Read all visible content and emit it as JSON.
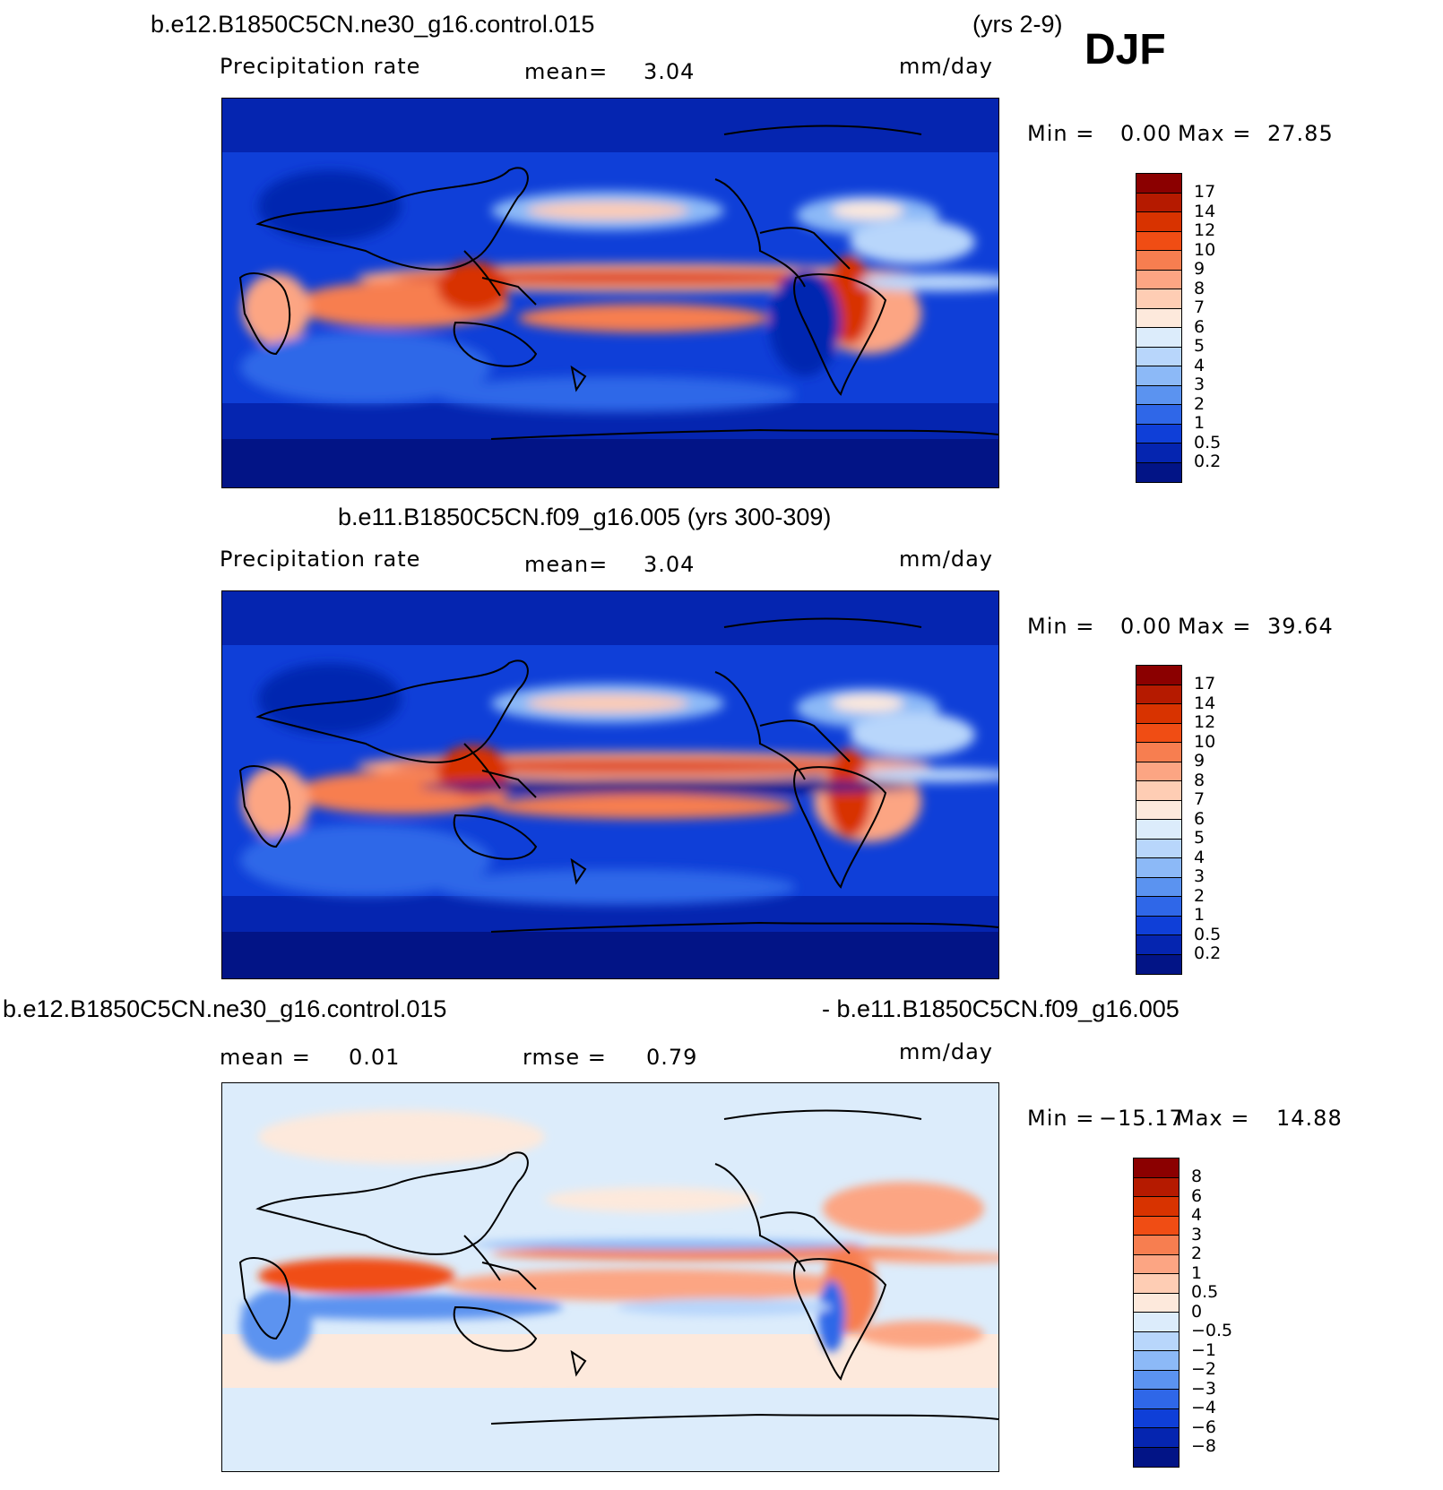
{
  "header": {
    "case1": "b.e12.B1850C5CN.ne30_g16.control.015",
    "years1": "(yrs 2-9)",
    "season": "DJF"
  },
  "panel1": {
    "variable": "Precipitation rate",
    "mean_label": "mean=",
    "mean_value": "3.04",
    "units": "mm/day",
    "min_label": "Min =",
    "min_value": "0.00",
    "max_label": "Max =",
    "max_value": "27.85"
  },
  "panel2": {
    "title": "b.e11.B1850C5CN.f09_g16.005 (yrs 300-309)",
    "variable": "Precipitation rate",
    "mean_label": "mean=",
    "mean_value": "3.04",
    "units": "mm/day",
    "min_label": "Min =",
    "min_value": "0.00",
    "max_label": "Max =",
    "max_value": "39.64"
  },
  "panel3": {
    "title_left": "b.e12.B1850C5CN.ne30_g16.control.015",
    "title_right": "- b.e11.B1850C5CN.f09_g16.005",
    "mean_label": "mean =",
    "mean_value": "0.01",
    "rmse_label": "rmse =",
    "rmse_value": "0.79",
    "units": "mm/day",
    "min_label": "Min =",
    "min_value": "−15.17",
    "max_label": "Max =",
    "max_value": "14.88"
  },
  "colorbar_precip": {
    "labels": [
      "17",
      "14",
      "12",
      "10",
      "9",
      "8",
      "7",
      "6",
      "5",
      "4",
      "3",
      "2",
      "1",
      "0.5",
      "0.2"
    ],
    "colors": [
      "#8b0000",
      "#b51a00",
      "#d83300",
      "#f04d14",
      "#f77e50",
      "#fca583",
      "#fecdb4",
      "#fde9dc",
      "#dcecfb",
      "#b8d6fb",
      "#8cb9f7",
      "#5b93f0",
      "#2f67e8",
      "#0f3fd8",
      "#0525b0",
      "#021486"
    ]
  },
  "colorbar_diff": {
    "labels": [
      "8",
      "6",
      "4",
      "3",
      "2",
      "1",
      "0.5",
      "0",
      "−0.5",
      "−1",
      "−2",
      "−3",
      "−4",
      "−6",
      "−8"
    ],
    "colors": [
      "#8b0000",
      "#b51a00",
      "#d83300",
      "#f04d14",
      "#f77e50",
      "#fca583",
      "#fecdb4",
      "#fde9dc",
      "#dcecfb",
      "#b8d6fb",
      "#8cb9f7",
      "#5b93f0",
      "#2f67e8",
      "#0f3fd8",
      "#0525b0",
      "#021486"
    ]
  },
  "chart_data": [
    {
      "type": "heatmap",
      "title": "Precipitation rate (b.e12.B1850C5CN.ne30_g16.control.015, yrs 2-9, DJF)",
      "units": "mm/day",
      "mean": 3.04,
      "min": 0.0,
      "max": 27.85,
      "contour_levels": [
        0.2,
        0.5,
        1,
        2,
        3,
        4,
        5,
        6,
        7,
        8,
        9,
        10,
        12,
        14,
        17
      ]
    },
    {
      "type": "heatmap",
      "title": "Precipitation rate (b.e11.B1850C5CN.f09_g16.005, yrs 300-309, DJF)",
      "units": "mm/day",
      "mean": 3.04,
      "min": 0.0,
      "max": 39.64,
      "contour_levels": [
        0.2,
        0.5,
        1,
        2,
        3,
        4,
        5,
        6,
        7,
        8,
        9,
        10,
        12,
        14,
        17
      ]
    },
    {
      "type": "heatmap",
      "title": "Difference (ne30 control.015 - f09_g16.005)",
      "units": "mm/day",
      "mean": 0.01,
      "rmse": 0.79,
      "min": -15.17,
      "max": 14.88,
      "contour_levels": [
        -8,
        -6,
        -4,
        -3,
        -2,
        -1,
        -0.5,
        0,
        0.5,
        1,
        2,
        3,
        4,
        6,
        8
      ]
    }
  ]
}
